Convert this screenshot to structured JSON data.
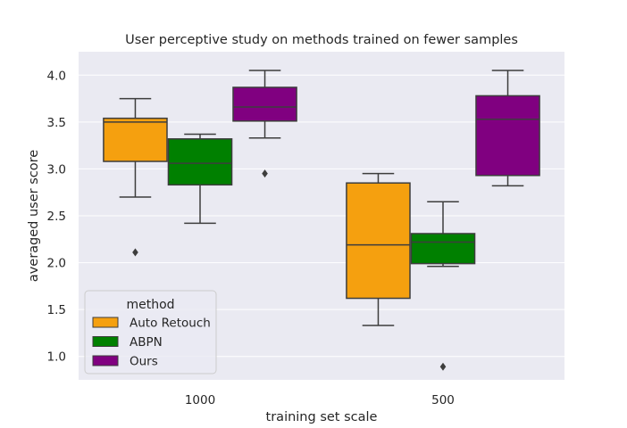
{
  "chart_data": {
    "type": "box",
    "title": "User perceptive study on methods trained on fewer samples",
    "xlabel": "training set scale",
    "ylabel": "averaged user score",
    "categories": [
      "1000",
      "500"
    ],
    "ylim": [
      0.75,
      4.25
    ],
    "yticks": [
      "1.0",
      "1.5",
      "2.0",
      "2.5",
      "3.0",
      "3.5",
      "4.0"
    ],
    "grid": true,
    "legend": {
      "title": "method",
      "placement": "lower-left"
    },
    "series": [
      {
        "name": "Auto Retouch",
        "color": "#F5A00F",
        "boxes": [
          {
            "category": "1000",
            "whislo": 2.7,
            "q1": 3.08,
            "median": 3.5,
            "q3": 3.54,
            "whishi": 3.75,
            "fliers": [
              2.11
            ]
          },
          {
            "category": "500",
            "whislo": 1.33,
            "q1": 1.62,
            "median": 2.19,
            "q3": 2.85,
            "whishi": 2.95,
            "fliers": []
          }
        ]
      },
      {
        "name": "ABPN",
        "color": "#008000",
        "boxes": [
          {
            "category": "1000",
            "whislo": 2.42,
            "q1": 2.83,
            "median": 3.06,
            "q3": 3.32,
            "whishi": 3.37,
            "fliers": []
          },
          {
            "category": "500",
            "whislo": 1.96,
            "q1": 1.99,
            "median": 2.22,
            "q3": 2.31,
            "whishi": 2.65,
            "fliers": [
              0.89
            ]
          }
        ]
      },
      {
        "name": "Ours",
        "color": "#800080",
        "boxes": [
          {
            "category": "1000",
            "whislo": 3.33,
            "q1": 3.51,
            "median": 3.66,
            "q3": 3.87,
            "whishi": 4.05,
            "fliers": [
              2.95
            ]
          },
          {
            "category": "500",
            "whislo": 2.82,
            "q1": 2.93,
            "median": 3.53,
            "q3": 3.78,
            "whishi": 4.05,
            "fliers": []
          }
        ]
      }
    ]
  }
}
